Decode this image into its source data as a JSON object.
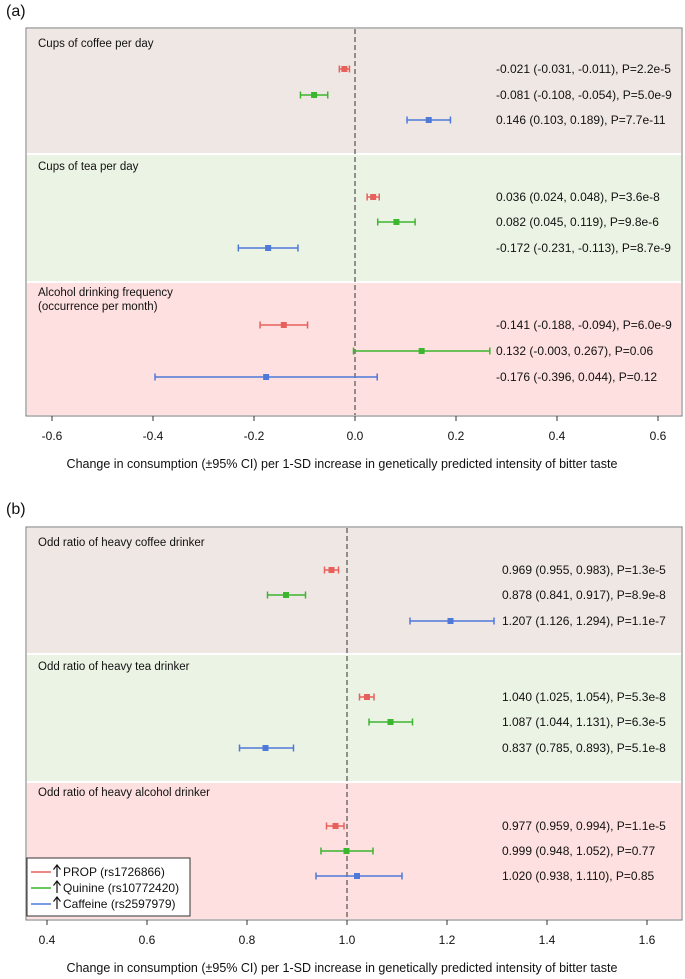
{
  "colors": {
    "PROP": "#e8605c",
    "Quinine": "#3cb52f",
    "Caffeine": "#4f79d9",
    "coffee_band": "#efe7e3",
    "tea_band": "#ebf3e4",
    "alcohol_band": "#fde0df",
    "frame": "#777777",
    "refline": "#444444"
  },
  "legend": {
    "items": [
      {
        "series": "PROP",
        "label": "PROP (rs1726866)"
      },
      {
        "series": "Quinine",
        "label": "Quinine (rs10772420)"
      },
      {
        "series": "Caffeine",
        "label": "Caffeine (rs2597979)"
      }
    ]
  },
  "chart_data": [
    {
      "type": "forest",
      "panel_label": "(a)",
      "xlabel": "Change in consumption (±95% CI) per 1-SD increase in genetically predicted intensity of bitter taste",
      "xlim": [
        -0.6,
        0.6
      ],
      "xticks": [
        -0.6,
        -0.4,
        -0.2,
        0.0,
        0.2,
        0.4,
        0.6
      ],
      "xtick_labels": [
        "-0.6",
        "-0.4",
        "-0.2",
        "0.0",
        "0.2",
        "0.4",
        "0.6"
      ],
      "reference_line": 0,
      "groups": [
        {
          "title_lines": [
            "Cups of coffee per day"
          ],
          "band": "coffee_band",
          "rows": [
            {
              "series": "PROP",
              "estimate": -0.021,
              "lower": -0.031,
              "upper": -0.011,
              "label": "-0.021 (-0.031, -0.011), P=2.2e-5"
            },
            {
              "series": "Quinine",
              "estimate": -0.081,
              "lower": -0.108,
              "upper": -0.054,
              "label": "-0.081 (-0.108, -0.054), P=5.0e-9"
            },
            {
              "series": "Caffeine",
              "estimate": 0.146,
              "lower": 0.103,
              "upper": 0.189,
              "label": "0.146 (0.103, 0.189), P=7.7e-11"
            }
          ]
        },
        {
          "title_lines": [
            "Cups of tea per day"
          ],
          "band": "tea_band",
          "rows": [
            {
              "series": "PROP",
              "estimate": 0.036,
              "lower": 0.024,
              "upper": 0.048,
              "label": "0.036 (0.024, 0.048), P=3.6e-8"
            },
            {
              "series": "Quinine",
              "estimate": 0.082,
              "lower": 0.045,
              "upper": 0.119,
              "label": "0.082 (0.045, 0.119), P=9.8e-6"
            },
            {
              "series": "Caffeine",
              "estimate": -0.172,
              "lower": -0.231,
              "upper": -0.113,
              "label": "-0.172 (-0.231, -0.113), P=8.7e-9"
            }
          ]
        },
        {
          "title_lines": [
            "Alcohol drinking frequency",
            "(occurrence per month)"
          ],
          "band": "alcohol_band",
          "rows": [
            {
              "series": "PROP",
              "estimate": -0.141,
              "lower": -0.188,
              "upper": -0.094,
              "label": "-0.141 (-0.188, -0.094), P=6.0e-9"
            },
            {
              "series": "Quinine",
              "estimate": 0.132,
              "lower": -0.003,
              "upper": 0.267,
              "label": "0.132 (-0.003, 0.267),  P=0.06"
            },
            {
              "series": "Caffeine",
              "estimate": -0.176,
              "lower": -0.396,
              "upper": 0.044,
              "label": "-0.176 (-0.396, 0.044),  P=0.12"
            }
          ]
        }
      ]
    },
    {
      "type": "forest",
      "panel_label": "(b)",
      "xlabel": "Change in consumption (±95% CI) per 1-SD increase in genetically predicted intensity of bitter taste",
      "xlim": [
        0.4,
        1.6
      ],
      "xticks": [
        0.4,
        0.6,
        0.8,
        1.0,
        1.2,
        1.4,
        1.6
      ],
      "xtick_labels": [
        "0.4",
        "0.6",
        "0.8",
        "1.0",
        "1.2",
        "1.4",
        "1.6"
      ],
      "reference_line": 1,
      "groups": [
        {
          "title_lines": [
            "Odd ratio of heavy coffee drinker"
          ],
          "band": "coffee_band",
          "rows": [
            {
              "series": "PROP",
              "estimate": 0.969,
              "lower": 0.955,
              "upper": 0.983,
              "label": "0.969 (0.955, 0.983), P=1.3e-5"
            },
            {
              "series": "Quinine",
              "estimate": 0.878,
              "lower": 0.841,
              "upper": 0.917,
              "label": "0.878 (0.841, 0.917), P=8.9e-8"
            },
            {
              "series": "Caffeine",
              "estimate": 1.207,
              "lower": 1.126,
              "upper": 1.294,
              "label": "1.207 (1.126, 1.294), P=1.1e-7"
            }
          ]
        },
        {
          "title_lines": [
            "Odd ratio of heavy tea drinker"
          ],
          "band": "tea_band",
          "rows": [
            {
              "series": "PROP",
              "estimate": 1.04,
              "lower": 1.025,
              "upper": 1.054,
              "label": "1.040 (1.025, 1.054), P=5.3e-8"
            },
            {
              "series": "Quinine",
              "estimate": 1.087,
              "lower": 1.044,
              "upper": 1.131,
              "label": "1.087 (1.044, 1.131), P=6.3e-5"
            },
            {
              "series": "Caffeine",
              "estimate": 0.837,
              "lower": 0.785,
              "upper": 0.893,
              "label": "0.837 (0.785, 0.893), P=5.1e-8"
            }
          ]
        },
        {
          "title_lines": [
            "Odd ratio of heavy alcohol drinker"
          ],
          "band": "alcohol_band",
          "rows": [
            {
              "series": "PROP",
              "estimate": 0.977,
              "lower": 0.959,
              "upper": 0.994,
              "label": "0.977 (0.959, 0.994), P=1.1e-5"
            },
            {
              "series": "Quinine",
              "estimate": 0.999,
              "lower": 0.948,
              "upper": 1.052,
              "label": "0.999 (0.948, 1.052), P=0.77"
            },
            {
              "series": "Caffeine",
              "estimate": 1.02,
              "lower": 0.938,
              "upper": 1.11,
              "label": "1.020 (0.938, 1.110), P=0.85"
            }
          ]
        }
      ]
    }
  ]
}
